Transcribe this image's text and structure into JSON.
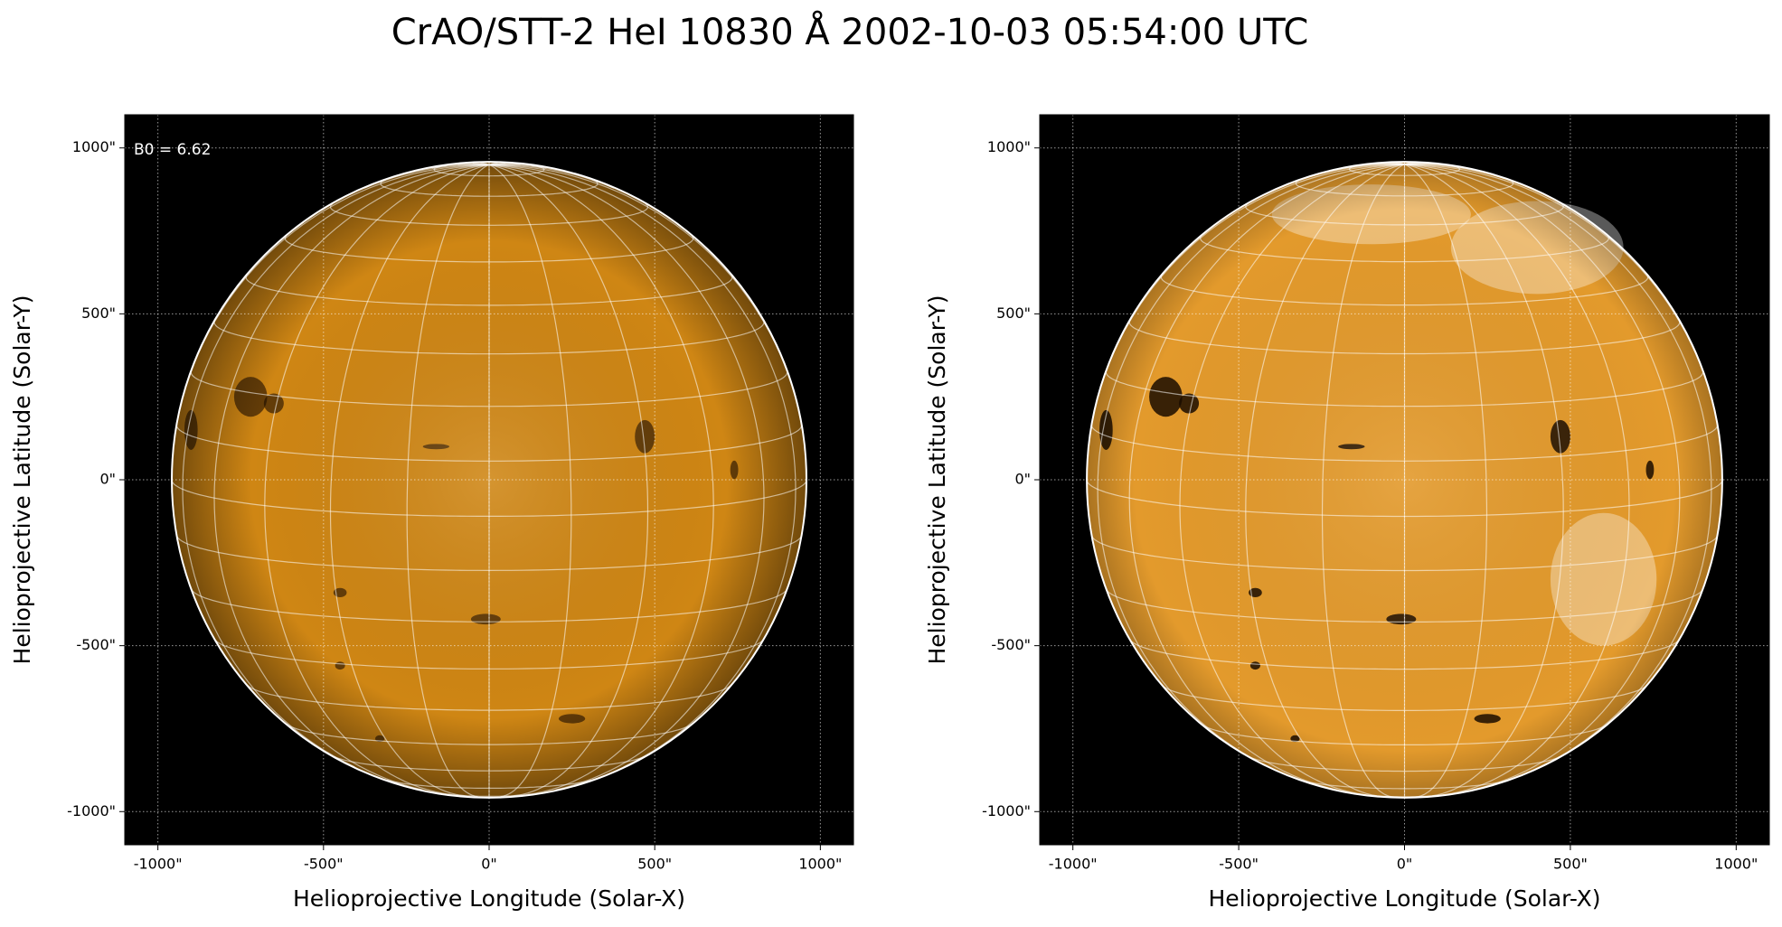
{
  "title": "CrAO/STT-2 HeI 10830 Å 2002-10-03 05:54:00 UTC",
  "chart_data": [
    {
      "type": "image",
      "xlabel": "Helioprojective Longitude (Solar-X)",
      "ylabel": "Helioprojective Latitude (Solar-Y)",
      "annotation": "B0 = 6.62",
      "xlim": [
        -1100,
        1100
      ],
      "ylim": [
        -1100,
        1100
      ],
      "xticks": [
        {
          "value": -1000,
          "label": "-1000\""
        },
        {
          "value": -500,
          "label": "-500\""
        },
        {
          "value": 0,
          "label": "0\""
        },
        {
          "value": 500,
          "label": "500\""
        },
        {
          "value": 1000,
          "label": "1000\""
        }
      ],
      "yticks": [
        {
          "value": -1000,
          "label": "-1000\""
        },
        {
          "value": -500,
          "label": "-500\""
        },
        {
          "value": 0,
          "label": "0\""
        },
        {
          "value": 500,
          "label": "500\""
        },
        {
          "value": 1000,
          "label": "1000\""
        }
      ],
      "disk_radius": 958,
      "color": "#cf8614",
      "grid": true
    },
    {
      "type": "image",
      "xlabel": "Helioprojective Longitude (Solar-X)",
      "ylabel": "Helioprojective Latitude (Solar-Y)",
      "xlim": [
        -1100,
        1100
      ],
      "ylim": [
        -1100,
        1100
      ],
      "xticks": [
        {
          "value": -1000,
          "label": "-1000\""
        },
        {
          "value": -500,
          "label": "-500\""
        },
        {
          "value": 0,
          "label": "0\""
        },
        {
          "value": 500,
          "label": "500\""
        },
        {
          "value": 1000,
          "label": "1000\""
        }
      ],
      "yticks": [
        {
          "value": -1000,
          "label": "-1000\""
        },
        {
          "value": -500,
          "label": "-500\""
        },
        {
          "value": 0,
          "label": "0\""
        },
        {
          "value": 500,
          "label": "500\""
        },
        {
          "value": 1000,
          "label": "1000\""
        }
      ],
      "disk_radius": 958,
      "color": "#e39a2c",
      "grid": true
    }
  ]
}
